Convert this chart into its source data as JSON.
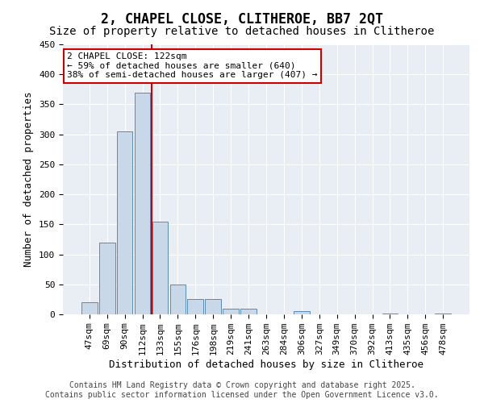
{
  "title": "2, CHAPEL CLOSE, CLITHEROE, BB7 2QT",
  "subtitle": "Size of property relative to detached houses in Clitheroe",
  "xlabel": "Distribution of detached houses by size in Clitheroe",
  "ylabel": "Number of detached properties",
  "bar_color": "#c8d8e8",
  "bar_edge_color": "#5a8ab5",
  "bar_heights": [
    20,
    120,
    305,
    370,
    155,
    50,
    25,
    25,
    10,
    10,
    0,
    0,
    5,
    0,
    0,
    0,
    0,
    2,
    0,
    0,
    2
  ],
  "bin_labels": [
    "47sqm",
    "69sqm",
    "90sqm",
    "112sqm",
    "133sqm",
    "155sqm",
    "176sqm",
    "198sqm",
    "219sqm",
    "241sqm",
    "263sqm",
    "284sqm",
    "306sqm",
    "327sqm",
    "349sqm",
    "370sqm",
    "392sqm",
    "413sqm",
    "435sqm",
    "456sqm",
    "478sqm"
  ],
  "ylim": [
    0,
    450
  ],
  "yticks": [
    0,
    50,
    100,
    150,
    200,
    250,
    300,
    350,
    400,
    450
  ],
  "property_label": "2 CHAPEL CLOSE: 122sqm",
  "annotation_line1": "← 59% of detached houses are smaller (640)",
  "annotation_line2": "38% of semi-detached houses are larger (407) →",
  "vline_color": "#cc0000",
  "annotation_box_color": "#cc0000",
  "background_color": "#e8eef4",
  "footer_line1": "Contains HM Land Registry data © Crown copyright and database right 2025.",
  "footer_line2": "Contains public sector information licensed under the Open Government Licence v3.0.",
  "title_fontsize": 12,
  "subtitle_fontsize": 10,
  "axis_label_fontsize": 9,
  "tick_fontsize": 8,
  "annotation_fontsize": 8,
  "footer_fontsize": 7,
  "vline_x": 3.5
}
